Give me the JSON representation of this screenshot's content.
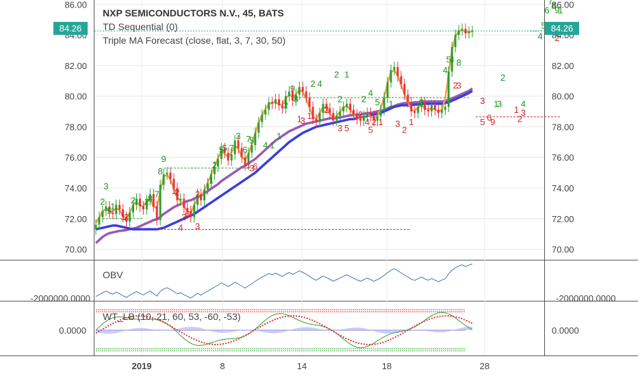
{
  "chart_data": {
    "type": "candlestick",
    "symbol_title": "NXP SEMICONDUCTORS N.V., 45, BATS",
    "indicators": [
      "TD Sequential (0)",
      "Triple MA Forecast (close, flat, 3, 7, 30, 50)"
    ],
    "last_price": "84.26",
    "price_axis": {
      "range": [
        69.4,
        86.1
      ],
      "ticks": [
        "86.00",
        "84.00",
        "82.00",
        "80.00",
        "78.00",
        "76.00",
        "74.00",
        "72.00",
        "70.00"
      ]
    },
    "x_ticks": [
      "2019",
      "8",
      "14",
      "18",
      "28"
    ],
    "obv": {
      "label": "OBV",
      "tick_label": "-2000000.0000"
    },
    "wt": {
      "label": "WT_LB (10, 21, 60, 53, -60, -53)",
      "tick_label": "0.0000"
    },
    "closes": [
      71.6,
      72.1,
      72.5,
      72.8,
      72.4,
      72.3,
      72.9,
      72.6,
      72.1,
      71.8,
      72.4,
      72.9,
      73.3,
      72.8,
      72.6,
      73.2,
      73.6,
      72.8,
      71.9,
      74.2,
      74.9,
      75.0,
      74.6,
      74.0,
      73.2,
      73.3,
      72.7,
      72.5,
      72.1,
      72.9,
      73.6,
      73.2,
      73.9,
      74.3,
      74.9,
      75.4,
      75.9,
      76.6,
      76.3,
      75.8,
      76.2,
      77.1,
      76.6,
      76.0,
      75.5,
      76.3,
      76.8,
      77.6,
      78.3,
      78.8,
      79.1,
      79.6,
      79.5,
      79.8,
      79.4,
      79.2,
      80.0,
      80.3,
      79.7,
      80.1,
      80.6,
      80.3,
      79.9,
      79.3,
      78.5,
      78.3,
      78.9,
      79.5,
      79.2,
      78.9,
      78.4,
      78.7,
      79.0,
      79.3,
      79.5,
      79.1,
      78.8,
      78.5,
      78.4,
      78.7,
      78.9,
      78.7,
      78.4,
      78.7,
      79.1,
      79.9,
      80.9,
      81.7,
      81.9,
      81.3,
      80.8,
      80.1,
      79.6,
      79.0,
      78.9,
      79.3,
      79.6,
      79.1,
      79.0,
      79.4,
      79.1,
      78.9,
      79.1,
      79.3,
      81.6,
      83.2,
      84.0,
      84.3,
      84.4,
      84.1,
      84.2,
      84.26
    ],
    "series": [
      {
        "name": "MA30",
        "values": [
          70.4,
          70.6,
          70.8,
          70.95,
          71.05,
          71.1,
          71.15,
          71.2,
          71.22,
          71.25,
          71.3,
          71.35,
          71.4,
          71.5,
          71.6,
          71.7,
          71.8,
          71.9,
          71.95,
          72.1,
          72.3,
          72.45,
          72.6,
          72.75,
          72.85,
          72.95,
          73.05,
          73.15,
          73.2,
          73.3,
          73.4,
          73.5,
          73.65,
          73.8,
          73.95,
          74.1,
          74.25,
          74.45,
          74.6,
          74.75,
          74.9,
          75.05,
          75.2,
          75.35,
          75.45,
          75.6,
          75.75,
          75.9,
          76.1,
          76.3,
          76.5,
          76.7,
          76.9,
          77.1,
          77.25,
          77.4,
          77.55,
          77.7,
          77.8,
          77.9,
          78.0,
          78.1,
          78.2,
          78.25,
          78.3,
          78.35,
          78.4,
          78.45,
          78.5,
          78.55,
          78.55,
          78.6,
          78.6,
          78.65,
          78.7,
          78.75,
          78.75,
          78.8,
          78.8,
          78.85,
          78.9,
          78.9,
          78.95,
          79.0,
          79.05,
          79.1,
          79.2,
          79.3,
          79.35,
          79.45,
          79.5,
          79.55,
          79.55,
          79.55,
          79.6,
          79.6,
          79.65,
          79.65,
          79.65,
          79.65,
          79.65,
          79.65,
          79.65,
          79.7,
          79.75,
          79.85,
          79.95,
          80.05,
          80.15,
          80.25,
          80.35,
          80.5
        ]
      },
      {
        "name": "MA50",
        "values": [
          71.3,
          71.35,
          71.4,
          71.45,
          71.5,
          71.55,
          71.55,
          71.5,
          71.45,
          71.4,
          71.35,
          71.3,
          71.3,
          71.3,
          71.3,
          71.3,
          71.3,
          71.3,
          71.3,
          71.35,
          71.4,
          71.5,
          71.6,
          71.7,
          71.8,
          71.9,
          72.0,
          72.1,
          72.2,
          72.3,
          72.45,
          72.6,
          72.75,
          72.9,
          73.05,
          73.2,
          73.35,
          73.5,
          73.65,
          73.8,
          73.95,
          74.1,
          74.25,
          74.4,
          74.55,
          74.7,
          74.85,
          75.0,
          75.2,
          75.4,
          75.6,
          75.8,
          76.0,
          76.2,
          76.4,
          76.6,
          76.8,
          77.0,
          77.15,
          77.3,
          77.45,
          77.6,
          77.7,
          77.8,
          77.9,
          78.0,
          78.05,
          78.1,
          78.15,
          78.2,
          78.25,
          78.3,
          78.35,
          78.4,
          78.45,
          78.5,
          78.5,
          78.55,
          78.6,
          78.65,
          78.7,
          78.75,
          78.8,
          78.85,
          78.9,
          79.0,
          79.1,
          79.2,
          79.3,
          79.35,
          79.4,
          79.4,
          79.4,
          79.4,
          79.45,
          79.45,
          79.5,
          79.5,
          79.5,
          79.5,
          79.5,
          79.5,
          79.5,
          79.55,
          79.6,
          79.7,
          79.8,
          79.9,
          80.0,
          80.1,
          80.2,
          80.35
        ]
      }
    ],
    "td_labels": [
      {
        "t": "3",
        "i": 3,
        "v": 73.9,
        "c": "g"
      },
      {
        "t": "2",
        "i": 2,
        "v": 72.9,
        "c": "g"
      },
      {
        "t": "1",
        "i": 5,
        "v": 72.6,
        "c": "g"
      },
      {
        "t": "5",
        "i": 4,
        "v": 72.3,
        "c": "g"
      },
      {
        "t": "2",
        "i": 11,
        "v": 73.0,
        "c": "g"
      },
      {
        "t": "2",
        "i": 15,
        "v": 72.9,
        "c": "g"
      },
      {
        "t": "8",
        "i": 16,
        "v": 73.1,
        "c": "g"
      },
      {
        "t": "7",
        "i": 18,
        "v": 73.4,
        "c": "g"
      },
      {
        "t": "8",
        "i": 19,
        "v": 74.9,
        "c": "g"
      },
      {
        "t": "9",
        "i": 20,
        "v": 75.7,
        "c": "g"
      },
      {
        "t": "2",
        "i": 9,
        "v": 71.9,
        "c": "r"
      },
      {
        "t": "1",
        "i": 8,
        "v": 71.9,
        "c": "r"
      },
      {
        "t": "1",
        "i": 23,
        "v": 73.6,
        "c": "r"
      },
      {
        "t": "2",
        "i": 24,
        "v": 73.5,
        "c": "r"
      },
      {
        "t": "3",
        "i": 26,
        "v": 71.9,
        "c": "r"
      },
      {
        "t": "6",
        "i": 27,
        "v": 72.1,
        "c": "r"
      },
      {
        "t": "4",
        "i": 25,
        "v": 71.2,
        "c": "r"
      },
      {
        "t": "3",
        "i": 30,
        "v": 71.3,
        "c": "r"
      },
      {
        "t": "2",
        "i": 30,
        "v": 73.4,
        "c": "r"
      },
      {
        "t": "1",
        "i": 34,
        "v": 74.3,
        "c": "g"
      },
      {
        "t": "2",
        "i": 35,
        "v": 75.3,
        "c": "g"
      },
      {
        "t": "5",
        "i": 37,
        "v": 76.3,
        "c": "g"
      },
      {
        "t": "7",
        "i": 40,
        "v": 76.4,
        "c": "g"
      },
      {
        "t": "5",
        "i": 38,
        "v": 76.4,
        "c": "g"
      },
      {
        "t": "6",
        "i": 44,
        "v": 76.3,
        "c": "g"
      },
      {
        "t": "7",
        "i": 45,
        "v": 77.0,
        "c": "g"
      },
      {
        "t": "3",
        "i": 42,
        "v": 77.2,
        "c": "g"
      },
      {
        "t": "5",
        "i": 46,
        "v": 76.9,
        "c": "g"
      },
      {
        "t": "4",
        "i": 50,
        "v": 76.6,
        "c": "g"
      },
      {
        "t": "1",
        "i": 52,
        "v": 76.6,
        "c": "g"
      },
      {
        "t": "1",
        "i": 54,
        "v": 77.2,
        "c": "g"
      },
      {
        "t": "1",
        "i": 45,
        "v": 75.3,
        "c": "r"
      },
      {
        "t": "3",
        "i": 46,
        "v": 75.1,
        "c": "r"
      },
      {
        "t": "6",
        "i": 47,
        "v": 75.2,
        "c": "r"
      },
      {
        "t": "2",
        "i": 56,
        "v": 79.2,
        "c": "g"
      },
      {
        "t": "9",
        "i": 58,
        "v": 80.3,
        "c": "g"
      },
      {
        "t": "8",
        "i": 59,
        "v": 79.6,
        "c": "g"
      },
      {
        "t": "2",
        "i": 64,
        "v": 80.6,
        "c": "g"
      },
      {
        "t": "4",
        "i": 66,
        "v": 80.6,
        "c": "g"
      },
      {
        "t": "2",
        "i": 71,
        "v": 81.2,
        "c": "g"
      },
      {
        "t": "1",
        "i": 74,
        "v": 81.2,
        "c": "g"
      },
      {
        "t": "2",
        "i": 72,
        "v": 79.6,
        "c": "g"
      },
      {
        "t": "1",
        "i": 60,
        "v": 78.3,
        "c": "r"
      },
      {
        "t": "3",
        "i": 61,
        "v": 78.2,
        "c": "r"
      },
      {
        "t": "1",
        "i": 63,
        "v": 78.5,
        "c": "r"
      },
      {
        "t": "2",
        "i": 68,
        "v": 78.9,
        "c": "r"
      },
      {
        "t": "3",
        "i": 72,
        "v": 77.7,
        "c": "r"
      },
      {
        "t": "5",
        "i": 74,
        "v": 77.7,
        "c": "r"
      },
      {
        "t": "2",
        "i": 79,
        "v": 79.6,
        "c": "g"
      },
      {
        "t": "4",
        "i": 81,
        "v": 80.0,
        "c": "g"
      },
      {
        "t": "5",
        "i": 83,
        "v": 79.4,
        "c": "g"
      },
      {
        "t": "1",
        "i": 87,
        "v": 79.3,
        "c": "g"
      },
      {
        "t": "2",
        "i": 96,
        "v": 79.4,
        "c": "g"
      },
      {
        "t": "2",
        "i": 78,
        "v": 78.6,
        "c": "r"
      },
      {
        "t": "4",
        "i": 80,
        "v": 78.1,
        "c": "r"
      },
      {
        "t": "5",
        "i": 81,
        "v": 77.6,
        "c": "r"
      },
      {
        "t": "2",
        "i": 82,
        "v": 78.1,
        "c": "r"
      },
      {
        "t": "1",
        "i": 84,
        "v": 78.1,
        "c": "r"
      },
      {
        "t": "3",
        "i": 89,
        "v": 78.0,
        "c": "r"
      },
      {
        "t": "2",
        "i": 91,
        "v": 77.6,
        "c": "r"
      },
      {
        "t": "1",
        "i": 93,
        "v": 78.1,
        "c": "r"
      },
      {
        "t": "5",
        "i": 104,
        "v": 82.2,
        "c": "g"
      },
      {
        "t": "4",
        "i": 105,
        "v": 82.2,
        "c": "g"
      },
      {
        "t": "8",
        "i": 107,
        "v": 82.0,
        "c": "g"
      },
      {
        "t": "4",
        "i": 103,
        "v": 81.5,
        "c": "g"
      },
      {
        "t": "2",
        "i": 106,
        "v": 80.5,
        "c": "r"
      },
      {
        "t": "3",
        "i": 107,
        "v": 80.5,
        "c": "r"
      },
      {
        "t": "5",
        "i": 114,
        "v": 78.1,
        "c": "r"
      },
      {
        "t": "9",
        "i": 117,
        "v": 78.1,
        "c": "r"
      },
      {
        "t": "6",
        "i": 116,
        "v": 78.4,
        "c": "r"
      },
      {
        "t": "3",
        "i": 114,
        "v": 79.5,
        "c": "r"
      },
      {
        "t": "2",
        "i": 120,
        "v": 81.0,
        "c": "g"
      },
      {
        "t": "1",
        "i": 118,
        "v": 79.3,
        "c": "g"
      },
      {
        "t": "3",
        "i": 119,
        "v": 79.3,
        "c": "g"
      },
      {
        "t": "4",
        "i": 126,
        "v": 79.3,
        "c": "g"
      },
      {
        "t": "1",
        "i": 124,
        "v": 78.9,
        "c": "r"
      },
      {
        "t": "2",
        "i": 125,
        "v": 78.3,
        "c": "r"
      },
      {
        "t": "3",
        "i": 126,
        "v": 78.7,
        "c": "r"
      },
      {
        "t": "4",
        "i": 131,
        "v": 83.7,
        "c": "g"
      },
      {
        "t": "5",
        "i": 132,
        "v": 84.4,
        "c": "g"
      },
      {
        "t": "6",
        "i": 133,
        "v": 85.4,
        "c": "g"
      },
      {
        "t": "7",
        "i": 134,
        "v": 86.0,
        "c": "g"
      },
      {
        "t": "8",
        "i": 135,
        "v": 85.7,
        "c": "g"
      },
      {
        "t": "9",
        "i": 136,
        "v": 85.4,
        "c": "g"
      },
      {
        "t": "1",
        "i": 137,
        "v": 85.4,
        "c": "g"
      },
      {
        "t": "1",
        "i": 135,
        "v": 84.0,
        "c": "r"
      },
      {
        "t": "2",
        "i": 136,
        "v": 83.6,
        "c": "r"
      }
    ]
  }
}
